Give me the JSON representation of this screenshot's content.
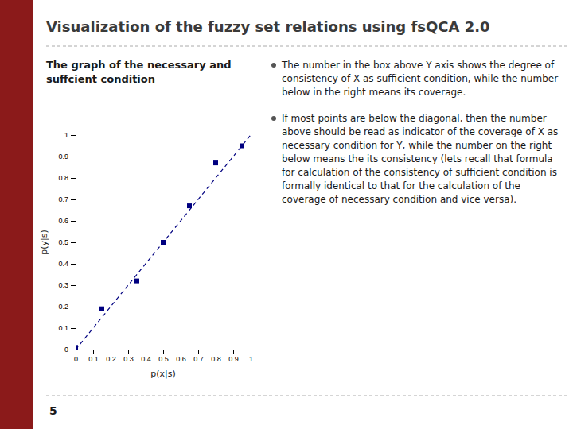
{
  "chart_data": {
    "type": "scatter",
    "title": "Visualization of the fuzzy set relations using fsQCA 2.0",
    "subtitle": "The graph of the necessary and suffcient condition",
    "annotations": [
      "5",
      "The number in the box above Y axis shows the degree of consistency of X as sufficient condition, while the number below in the right means its coverage.",
      "If most points are below the diagonal, then the number above should be read as indicator of the coverage of X as necessary condition for Y, while the number on the right below means the its consistency (lets recall that formula for calculation of the consistency of sufficient condition is formally identical to that for the calculation of the coverage of necessary condition and vice versa)."
    ],
    "xlabel": "p(x|s)",
    "ylabel": "p(y|s)",
    "xlim": [
      0.0,
      1.0
    ],
    "ylim": [
      0.0,
      1.0
    ],
    "xticks": [
      0,
      0.1,
      0.2,
      0.3,
      0.4,
      0.5,
      0.6,
      0.7,
      0.8,
      0.9,
      1
    ],
    "yticks": [
      0,
      0.1,
      0.2,
      0.3,
      0.4,
      0.5,
      0.6,
      0.7,
      0.8,
      0.9,
      1
    ],
    "grid": false,
    "series": [
      {
        "type": "line",
        "line_style": "dashed",
        "color": "#000080",
        "x": [
          0.0,
          1.0
        ],
        "values": [
          0.0,
          1.0
        ]
      },
      {
        "type": "scatter",
        "marker": "square",
        "color": "#000080",
        "x": [
          0.0,
          0.15,
          0.35,
          0.5,
          0.65,
          0.8,
          0.95
        ],
        "values": [
          0.01,
          0.19,
          0.32,
          0.5,
          0.67,
          0.87,
          0.95
        ]
      }
    ]
  }
}
